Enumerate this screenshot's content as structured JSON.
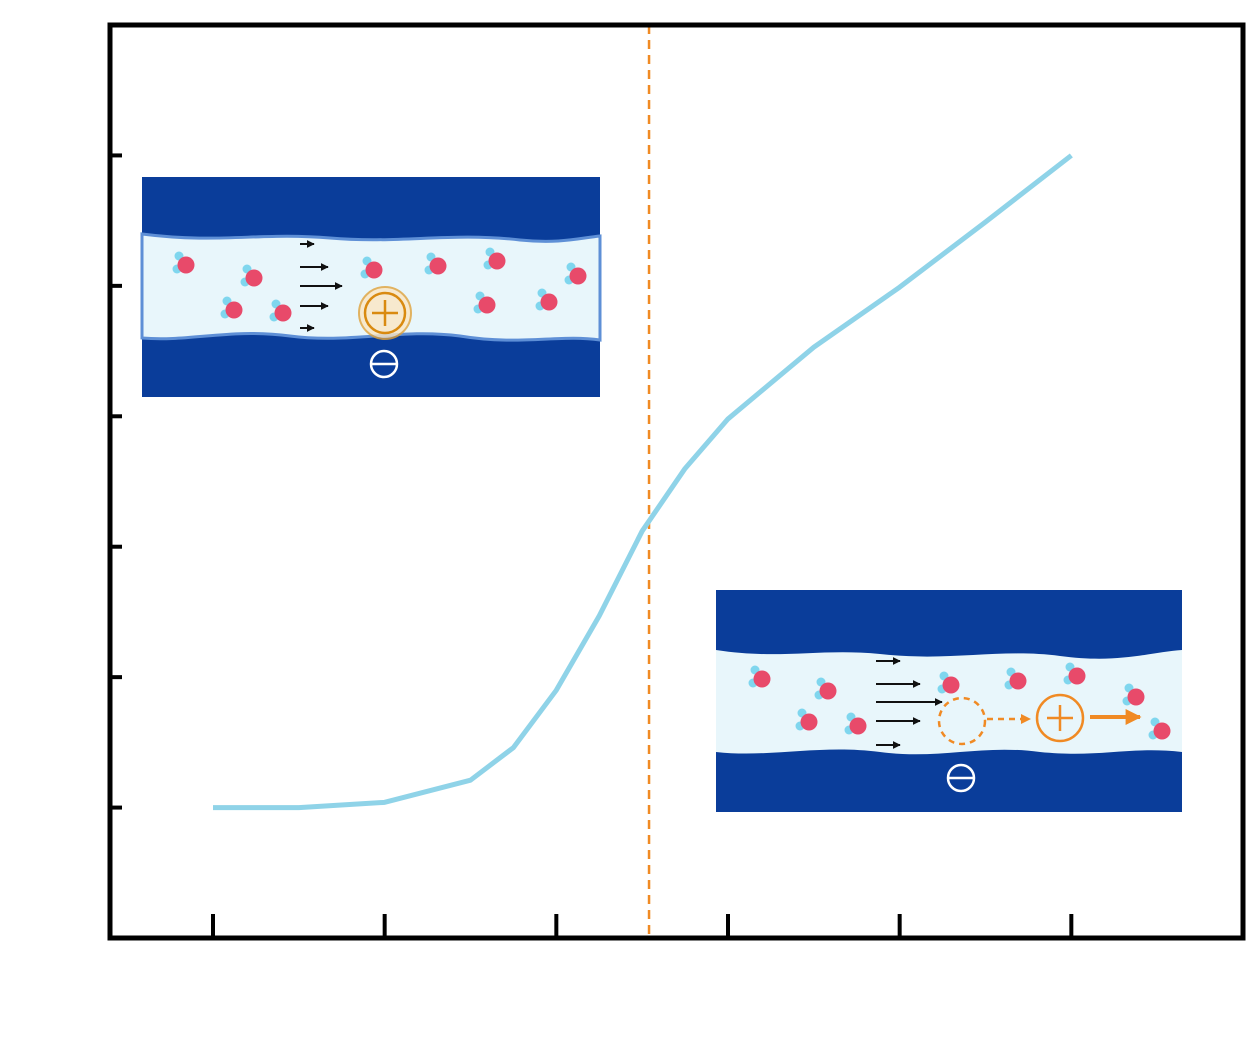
{
  "chart_data": {
    "type": "line",
    "x": [
      0,
      0.5,
      1,
      1.5,
      1.75,
      2,
      2.25,
      2.5,
      2.75,
      3,
      3.5,
      4,
      4.5,
      5
    ],
    "series": [
      {
        "color": "#8fd3e8",
        "values": [
          0,
          0,
          0.04,
          0.21,
          0.46,
          0.9,
          1.47,
          2.12,
          2.6,
          2.98,
          3.53,
          3.99,
          4.49,
          5
        ]
      }
    ],
    "xlim": [
      -0.6,
      6
    ],
    "ylim": [
      -1,
      6
    ],
    "xticks": [
      0,
      1,
      2,
      3,
      4,
      5
    ],
    "yticks": [
      0,
      1,
      2,
      3,
      4,
      5
    ],
    "vline": {
      "x": 2.54,
      "color": "#f08a24"
    }
  }
}
